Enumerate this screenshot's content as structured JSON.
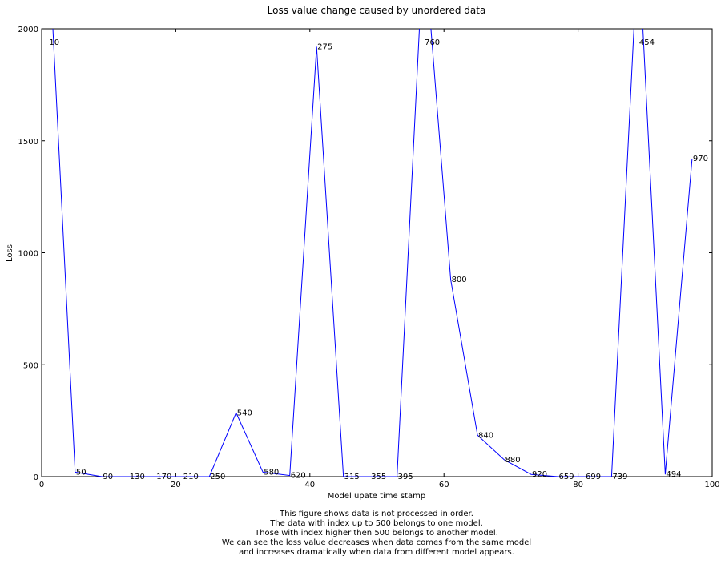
{
  "chart_data": {
    "type": "line",
    "title": "Loss value change caused by unordered data",
    "xlabel": "Model upate time stamp",
    "ylabel": "Loss",
    "xlim": [
      0,
      100
    ],
    "ylim": [
      0,
      2000
    ],
    "xticks": [
      0,
      20,
      40,
      60,
      80,
      100
    ],
    "yticks": [
      0,
      500,
      1000,
      1500,
      2000
    ],
    "grid": false,
    "line_color": "#0000ff",
    "series": [
      {
        "x": [
          1,
          5,
          9,
          13,
          17,
          21,
          25,
          29,
          33,
          37,
          41,
          45,
          49,
          53,
          57,
          61,
          65,
          69,
          73,
          77,
          81,
          85,
          89,
          93,
          97
        ],
        "y": [
          2400,
          20,
          0,
          0,
          0,
          0,
          0,
          285,
          20,
          5,
          1920,
          0,
          0,
          0,
          2400,
          880,
          185,
          75,
          10,
          0,
          0,
          0,
          2400,
          10,
          1420
        ]
      }
    ],
    "annotations": [
      {
        "text": "10",
        "x": 1,
        "y": 1940
      },
      {
        "text": "50",
        "x": 5,
        "y": 20
      },
      {
        "text": "90",
        "x": 9,
        "y": 0
      },
      {
        "text": "130",
        "x": 13,
        "y": 0
      },
      {
        "text": "170",
        "x": 17,
        "y": 0
      },
      {
        "text": "210",
        "x": 21,
        "y": 0
      },
      {
        "text": "250",
        "x": 25,
        "y": 0
      },
      {
        "text": "540",
        "x": 29,
        "y": 285
      },
      {
        "text": "580",
        "x": 33,
        "y": 20
      },
      {
        "text": "620",
        "x": 37,
        "y": 5
      },
      {
        "text": "275",
        "x": 41,
        "y": 1920
      },
      {
        "text": "315",
        "x": 45,
        "y": 0
      },
      {
        "text": "355",
        "x": 49,
        "y": 0
      },
      {
        "text": "395",
        "x": 53,
        "y": 0
      },
      {
        "text": "760",
        "x": 57,
        "y": 1940
      },
      {
        "text": "800",
        "x": 61,
        "y": 880
      },
      {
        "text": "840",
        "x": 65,
        "y": 185
      },
      {
        "text": "880",
        "x": 69,
        "y": 75
      },
      {
        "text": "920",
        "x": 73,
        "y": 10
      },
      {
        "text": "659",
        "x": 77,
        "y": 0
      },
      {
        "text": "699",
        "x": 81,
        "y": 0
      },
      {
        "text": "739",
        "x": 85,
        "y": 0
      },
      {
        "text": "454",
        "x": 89,
        "y": 1940
      },
      {
        "text": "494",
        "x": 93,
        "y": 10
      },
      {
        "text": "970",
        "x": 97,
        "y": 1420
      }
    ],
    "caption": [
      "This figure shows data is not processed in order.",
      "The data with index up to 500 belongs to one model.",
      "Those with index higher then 500 belongs to another model.",
      "We can see the loss value decreases when data comes from the same model",
      "and increases dramatically when data from different model appears."
    ]
  }
}
